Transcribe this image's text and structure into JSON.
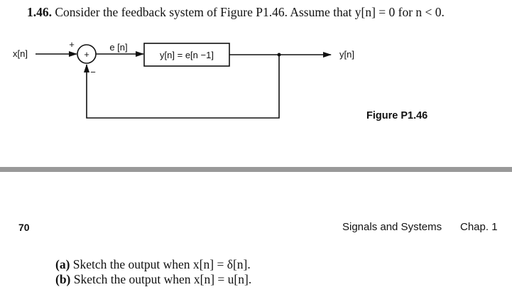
{
  "problem": {
    "number": "1.46.",
    "statement_prefix": "Consider the feedback system of Figure P1.46. Assume that ",
    "condition": "y[n] = 0 for n < 0."
  },
  "figure": {
    "caption": "Figure P1.46",
    "input_label": "x[n]",
    "output_label": "y[n]",
    "error_label": "e [n]",
    "block_label": "y[n] = e[n −1]",
    "adder_symbol": "+",
    "plus_sign": "+",
    "minus_sign": "−"
  },
  "footer": {
    "page_number": "70",
    "running_head": "Signals and Systems",
    "chapter": "Chap. 1"
  },
  "parts": [
    {
      "label": "(a)",
      "text": "Sketch the output when x[n] = δ[n]."
    },
    {
      "label": "(b)",
      "text": "Sketch the output when x[n] = u[n]."
    }
  ],
  "colors": {
    "ink": "#111111",
    "rule": "#999999",
    "background": "#ffffff"
  }
}
